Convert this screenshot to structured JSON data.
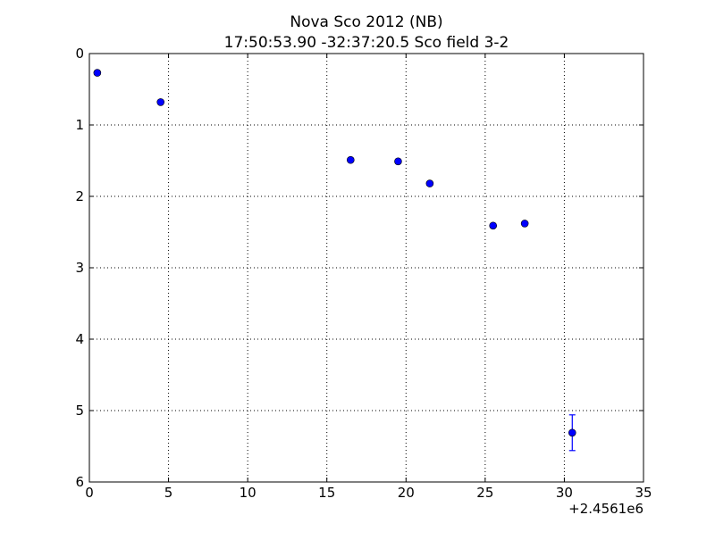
{
  "chart_data": {
    "type": "scatter",
    "title": "Nova Sco 2012  (NB)",
    "subtitle": "17:50:53.90 -32:37:20.5 Sco field 3-2",
    "xlabel": "",
    "ylabel": "",
    "x_offset_label": "+2.4561e6",
    "xlim": [
      0,
      35
    ],
    "ylim": [
      0,
      6
    ],
    "y_inverted": true,
    "grid": true,
    "x_ticks": [
      0,
      5,
      10,
      15,
      20,
      25,
      30,
      35
    ],
    "y_ticks": [
      0,
      1,
      2,
      3,
      4,
      5,
      6
    ],
    "x_tick_labels": [
      "0",
      "5",
      "10",
      "15",
      "20",
      "25",
      "30",
      "35"
    ],
    "y_tick_labels": [
      "0",
      "1",
      "2",
      "3",
      "4",
      "5",
      "6"
    ],
    "marker_color": "#0000ff",
    "errorbar_color": "#0000ff",
    "series": [
      {
        "points": [
          {
            "x": 0.5,
            "y": 0.27
          },
          {
            "x": 4.5,
            "y": 0.68
          },
          {
            "x": 16.5,
            "y": 1.49
          },
          {
            "x": 19.5,
            "y": 1.51
          },
          {
            "x": 21.5,
            "y": 1.82
          },
          {
            "x": 25.5,
            "y": 2.41
          },
          {
            "x": 27.5,
            "y": 2.38
          },
          {
            "x": 30.5,
            "y": 5.31,
            "yerr": 0.25
          }
        ]
      }
    ]
  }
}
